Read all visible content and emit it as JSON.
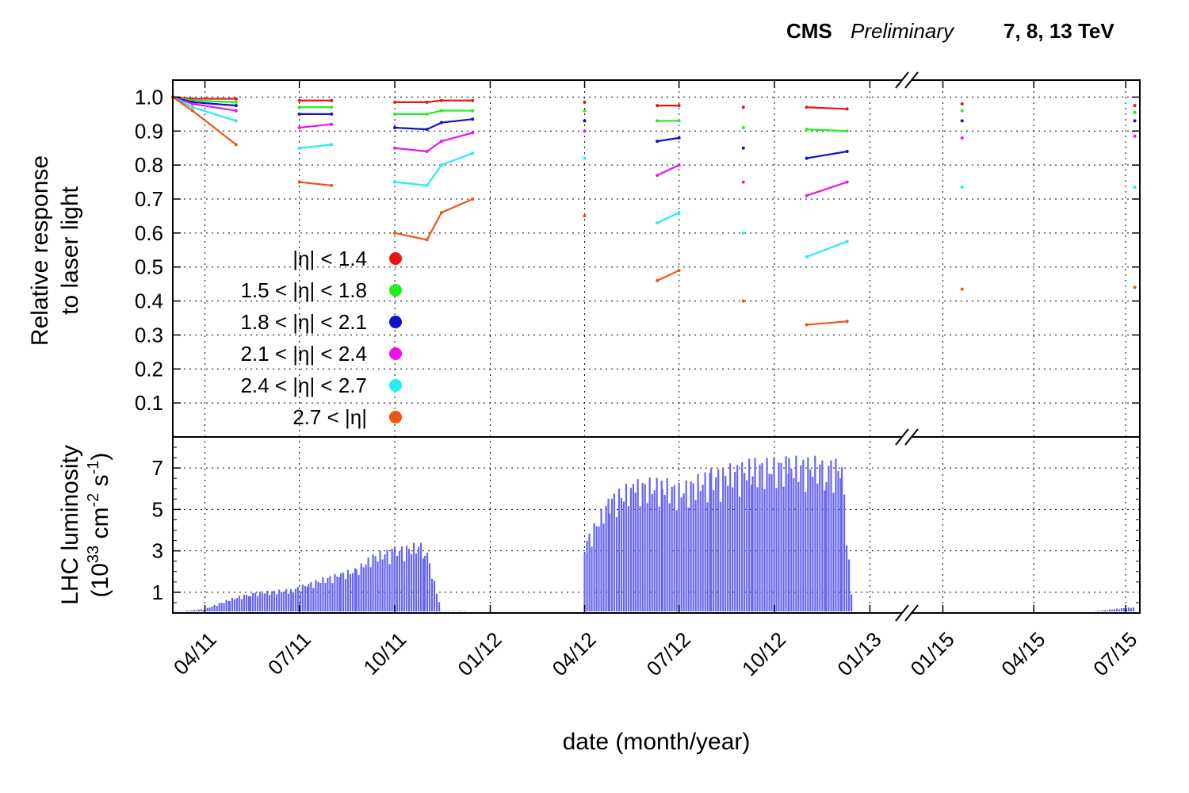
{
  "header": {
    "experiment": "CMS",
    "status": "Preliminary",
    "energy": "7, 8, 13 TeV"
  },
  "chart_data": [
    {
      "type": "scatter",
      "panel": "top",
      "ylabel_line1": "Relative response",
      "ylabel_line2": "to laser light",
      "ylim": [
        0,
        1.05
      ],
      "yticks": [
        0.1,
        0.2,
        0.3,
        0.4,
        0.5,
        0.6,
        0.7,
        0.8,
        0.9,
        1.0
      ],
      "ytick_labels": [
        "0.1",
        "0.2",
        "0.3",
        "0.4",
        "0.5",
        "0.6",
        "0.7",
        "0.8",
        "0.9",
        "1.0"
      ],
      "grid": true,
      "legend_position": "left-center",
      "series": [
        {
          "name": "|η| < 1.4",
          "color": "#ee1111",
          "points": [
            [
              "2011-03-01",
              1.0
            ],
            [
              "2011-03-20",
              0.995
            ],
            [
              "2011-05-01",
              0.995
            ],
            [
              "2011-07-01",
              0.99
            ],
            [
              "2011-08-01",
              0.99
            ],
            [
              "2011-10-01",
              0.985
            ],
            [
              "2011-11-01",
              0.985
            ],
            [
              "2011-11-15",
              0.99
            ],
            [
              "2011-12-15",
              0.99
            ],
            [
              "2012-04-01",
              0.985
            ],
            [
              "2012-06-10",
              0.975
            ],
            [
              "2012-07-01",
              0.975
            ],
            [
              "2012-09-01",
              0.97
            ],
            [
              "2012-11-01",
              0.97
            ],
            [
              "2012-12-10",
              0.965
            ],
            [
              "2015-01-20",
              0.98
            ],
            [
              "2015-07-10",
              0.975
            ]
          ]
        },
        {
          "name": "1.5 < |η| < 1.8",
          "color": "#22ee22",
          "points": [
            [
              "2011-03-01",
              1.0
            ],
            [
              "2011-03-20",
              0.99
            ],
            [
              "2011-05-01",
              0.985
            ],
            [
              "2011-07-01",
              0.97
            ],
            [
              "2011-08-01",
              0.97
            ],
            [
              "2011-10-01",
              0.95
            ],
            [
              "2011-11-01",
              0.95
            ],
            [
              "2011-11-15",
              0.96
            ],
            [
              "2011-12-15",
              0.96
            ],
            [
              "2012-04-01",
              0.96
            ],
            [
              "2012-06-10",
              0.93
            ],
            [
              "2012-07-01",
              0.93
            ],
            [
              "2012-09-01",
              0.91
            ],
            [
              "2012-11-01",
              0.905
            ],
            [
              "2012-12-10",
              0.9
            ],
            [
              "2015-01-20",
              0.96
            ],
            [
              "2015-07-10",
              0.955
            ]
          ]
        },
        {
          "name": "1.8 < |η| < 2.1",
          "color": "#1111cc",
          "points": [
            [
              "2011-03-01",
              1.0
            ],
            [
              "2011-03-20",
              0.985
            ],
            [
              "2011-05-01",
              0.975
            ],
            [
              "2011-07-01",
              0.95
            ],
            [
              "2011-08-01",
              0.95
            ],
            [
              "2011-10-01",
              0.91
            ],
            [
              "2011-11-01",
              0.905
            ],
            [
              "2011-11-15",
              0.925
            ],
            [
              "2011-12-15",
              0.935
            ],
            [
              "2012-04-01",
              0.93
            ],
            [
              "2012-06-10",
              0.87
            ],
            [
              "2012-07-01",
              0.88
            ],
            [
              "2012-09-01",
              0.85
            ],
            [
              "2012-11-01",
              0.82
            ],
            [
              "2012-12-10",
              0.84
            ],
            [
              "2015-01-20",
              0.93
            ],
            [
              "2015-07-10",
              0.93
            ]
          ]
        },
        {
          "name": "2.1 < |η| < 2.4",
          "color": "#ee11ee",
          "points": [
            [
              "2011-03-01",
              1.0
            ],
            [
              "2011-03-20",
              0.98
            ],
            [
              "2011-05-01",
              0.96
            ],
            [
              "2011-07-01",
              0.91
            ],
            [
              "2011-08-01",
              0.92
            ],
            [
              "2011-10-01",
              0.85
            ],
            [
              "2011-11-01",
              0.84
            ],
            [
              "2011-11-15",
              0.87
            ],
            [
              "2011-12-15",
              0.895
            ],
            [
              "2012-04-01",
              0.9
            ],
            [
              "2012-06-10",
              0.77
            ],
            [
              "2012-07-01",
              0.8
            ],
            [
              "2012-09-01",
              0.75
            ],
            [
              "2012-11-01",
              0.71
            ],
            [
              "2012-12-10",
              0.75
            ],
            [
              "2015-01-20",
              0.88
            ],
            [
              "2015-07-10",
              0.885
            ]
          ]
        },
        {
          "name": "2.4 < |η| < 2.7",
          "color": "#22eeee",
          "points": [
            [
              "2011-03-01",
              1.0
            ],
            [
              "2011-03-20",
              0.97
            ],
            [
              "2011-05-01",
              0.93
            ],
            [
              "2011-07-01",
              0.85
            ],
            [
              "2011-08-01",
              0.86
            ],
            [
              "2011-10-01",
              0.75
            ],
            [
              "2011-11-01",
              0.74
            ],
            [
              "2011-11-15",
              0.8
            ],
            [
              "2011-12-15",
              0.835
            ],
            [
              "2012-04-01",
              0.82
            ],
            [
              "2012-06-10",
              0.63
            ],
            [
              "2012-07-01",
              0.66
            ],
            [
              "2012-09-01",
              0.6
            ],
            [
              "2012-11-01",
              0.53
            ],
            [
              "2012-12-10",
              0.575
            ],
            [
              "2015-01-20",
              0.735
            ],
            [
              "2015-07-10",
              0.735
            ]
          ]
        },
        {
          "name": "2.7 < |η|",
          "color": "#ee5511",
          "points": [
            [
              "2011-03-01",
              1.0
            ],
            [
              "2011-03-20",
              0.96
            ],
            [
              "2011-05-01",
              0.86
            ],
            [
              "2011-07-01",
              0.75
            ],
            [
              "2011-08-01",
              0.74
            ],
            [
              "2011-10-01",
              0.6
            ],
            [
              "2011-11-01",
              0.58
            ],
            [
              "2011-11-15",
              0.66
            ],
            [
              "2011-12-15",
              0.7
            ],
            [
              "2012-04-01",
              0.65
            ],
            [
              "2012-06-10",
              0.46
            ],
            [
              "2012-07-01",
              0.49
            ],
            [
              "2012-09-01",
              0.4
            ],
            [
              "2012-11-01",
              0.33
            ],
            [
              "2012-12-10",
              0.34
            ],
            [
              "2015-01-20",
              0.435
            ],
            [
              "2015-07-10",
              0.44
            ]
          ]
        }
      ]
    },
    {
      "type": "scatter",
      "panel": "bottom",
      "ylabel_line1": "LHC luminosity",
      "ylabel_line2_prefix": "(10",
      "ylabel_exp1": "33",
      "ylabel_mid": " cm",
      "ylabel_exp2": "-2",
      "ylabel_mid2": " s",
      "ylabel_exp3": "-1",
      "ylabel_suffix": ")",
      "ylim": [
        0,
        8.5
      ],
      "yticks": [
        1,
        3,
        5,
        7
      ],
      "ytick_labels": [
        "1",
        "3",
        "5",
        "7"
      ],
      "grid": true,
      "color": "#6666ee",
      "peak_envelope": [
        [
          "2011-03-01",
          0.1
        ],
        [
          "2011-03-10",
          0.1
        ],
        [
          "2011-04-01",
          0.2
        ],
        [
          "2011-04-25",
          0.7
        ],
        [
          "2011-05-15",
          1.0
        ],
        [
          "2011-06-25",
          1.2
        ],
        [
          "2011-07-10",
          1.5
        ],
        [
          "2011-08-10",
          2.0
        ],
        [
          "2011-08-25",
          2.2
        ],
        [
          "2011-09-10",
          2.9
        ],
        [
          "2011-10-01",
          3.2
        ],
        [
          "2011-10-30",
          3.5
        ],
        [
          "2011-11-15",
          0.1
        ],
        [
          "2011-12-10",
          0.1
        ],
        [
          "2012-04-01",
          3.5
        ],
        [
          "2012-04-25",
          5.8
        ],
        [
          "2012-05-20",
          6.5
        ],
        [
          "2012-06-15",
          6.6
        ],
        [
          "2012-07-01",
          6.3
        ],
        [
          "2012-08-01",
          7.0
        ],
        [
          "2012-09-10",
          7.5
        ],
        [
          "2012-10-15",
          7.6
        ],
        [
          "2012-11-20",
          7.6
        ],
        [
          "2012-12-05",
          7.5
        ],
        [
          "2012-12-15",
          0.4
        ],
        [
          "2015-06-01",
          0.1
        ],
        [
          "2015-07-10",
          0.3
        ]
      ]
    }
  ],
  "xaxis": {
    "label": "date (month/year)",
    "tick_labels": [
      "04/11",
      "07/11",
      "10/11",
      "01/12",
      "04/12",
      "07/12",
      "10/12",
      "01/13",
      "01/15",
      "04/15",
      "07/15"
    ],
    "tick_dates": [
      "2011-04-01",
      "2011-07-01",
      "2011-10-01",
      "2012-01-01",
      "2012-04-01",
      "2012-07-01",
      "2012-10-01",
      "2013-01-01",
      "2015-01-01",
      "2015-04-01",
      "2015-07-01"
    ],
    "range": [
      "2011-03-01",
      "2015-07-15"
    ],
    "axis_break": [
      "2013-02-01",
      "2014-12-01"
    ]
  }
}
